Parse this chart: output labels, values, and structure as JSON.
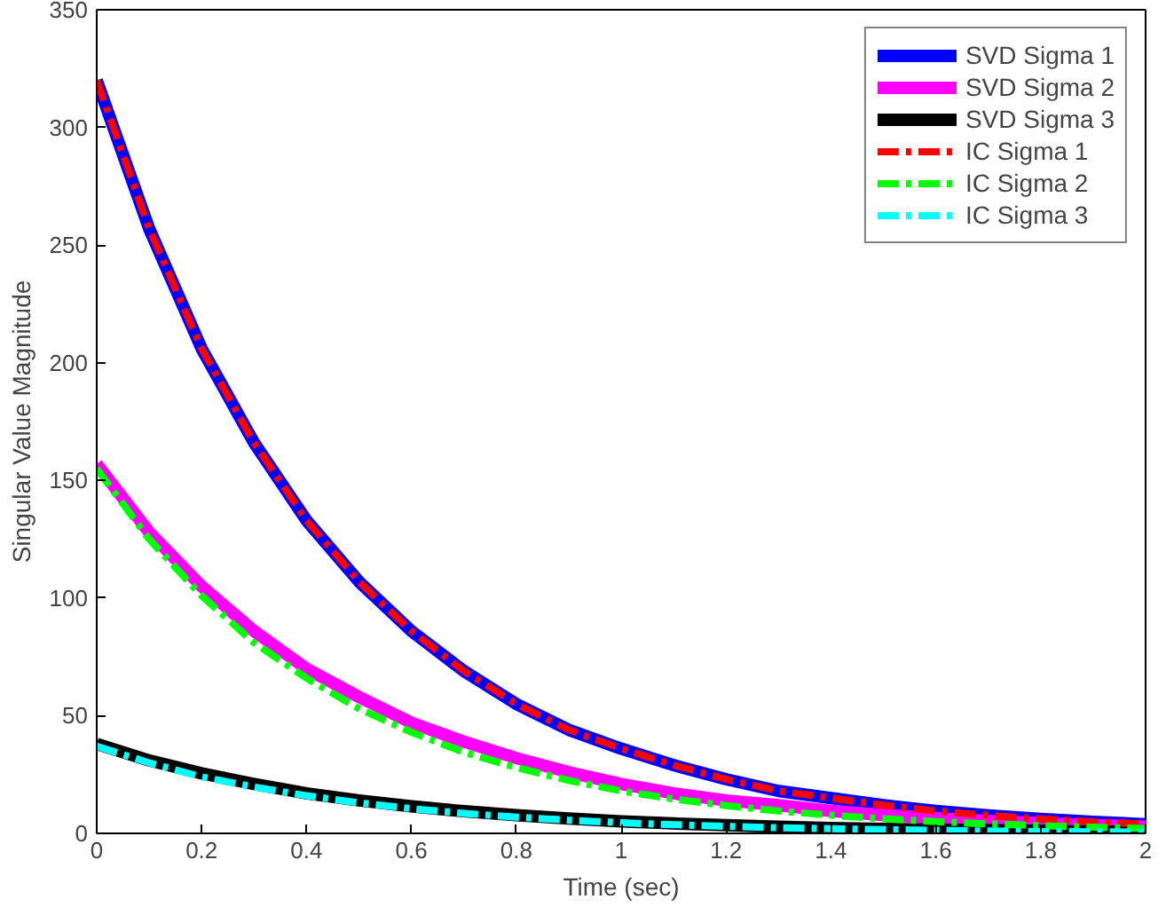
{
  "chart_data": {
    "type": "line",
    "xlabel": "Time (sec)",
    "ylabel": "Singular Value Magnitude",
    "x": [
      0,
      0.1,
      0.2,
      0.3,
      0.4,
      0.5,
      0.6,
      0.7,
      0.8,
      0.9,
      1,
      1.1,
      1.2,
      1.3,
      1.4,
      1.5,
      1.6,
      1.7,
      1.8,
      1.9,
      2
    ],
    "xlim": [
      0,
      2
    ],
    "xticks": [
      0,
      0.2,
      0.4,
      0.6,
      0.8,
      1,
      1.2,
      1.4,
      1.6,
      1.8,
      2
    ],
    "ylim": [
      0,
      350
    ],
    "yticks": [
      0,
      50,
      100,
      150,
      200,
      250,
      300,
      350
    ],
    "grid": false,
    "legend": "top right",
    "marker": "none",
    "series": [
      {
        "name": "SVD Sigma 1",
        "color": "#0000ff",
        "line_style": "solid",
        "values": [
          320,
          257,
          206,
          166,
          133,
          107,
          86,
          69,
          55,
          44,
          36,
          29,
          23,
          18,
          15,
          12,
          9.5,
          7.6,
          6.1,
          4.9,
          3.9
        ]
      },
      {
        "name": "SVD Sigma 2",
        "color": "#ff00ff",
        "line_style": "solid",
        "values": [
          157,
          128,
          105,
          86,
          70,
          58,
          47,
          39,
          32,
          26,
          21,
          17,
          14,
          12,
          9.5,
          7.8,
          6.4,
          5.2,
          4.3,
          3.5,
          2.9
        ]
      },
      {
        "name": "SVD Sigma 3",
        "color": "#000000",
        "line_style": "solid",
        "values": [
          38,
          31,
          25.5,
          21,
          17,
          14,
          11.5,
          9.4,
          7.7,
          6.3,
          5.1,
          4.2,
          3.5,
          2.8,
          2.3,
          1.9,
          1.5,
          1.3,
          1,
          0.8,
          0.7
        ]
      },
      {
        "name": "IC Sigma 1",
        "color": "#ff0000",
        "line_style": "dashdot",
        "values": [
          320,
          257,
          206,
          166,
          133,
          107,
          86,
          69,
          55,
          44,
          36,
          29,
          23,
          18,
          15,
          12,
          9.5,
          7.6,
          6.1,
          4.9,
          3.9
        ]
      },
      {
        "name": "IC Sigma 2",
        "color": "#00ff00",
        "line_style": "dashdot",
        "values": [
          155,
          125,
          101,
          81,
          66,
          53,
          43,
          34.5,
          28,
          22.5,
          18,
          14.6,
          11.8,
          9.5,
          7.7,
          6.2,
          5,
          4,
          3.3,
          2.6,
          2.1
        ]
      },
      {
        "name": "IC Sigma 3",
        "color": "#00ffff",
        "line_style": "dashdot",
        "values": [
          37,
          30,
          24,
          19.7,
          16,
          13,
          10.5,
          8.5,
          6.9,
          5.6,
          4.5,
          3.7,
          3,
          2.4,
          2,
          1.6,
          1.3,
          1,
          0.8,
          0.7,
          0.5
        ]
      }
    ]
  }
}
